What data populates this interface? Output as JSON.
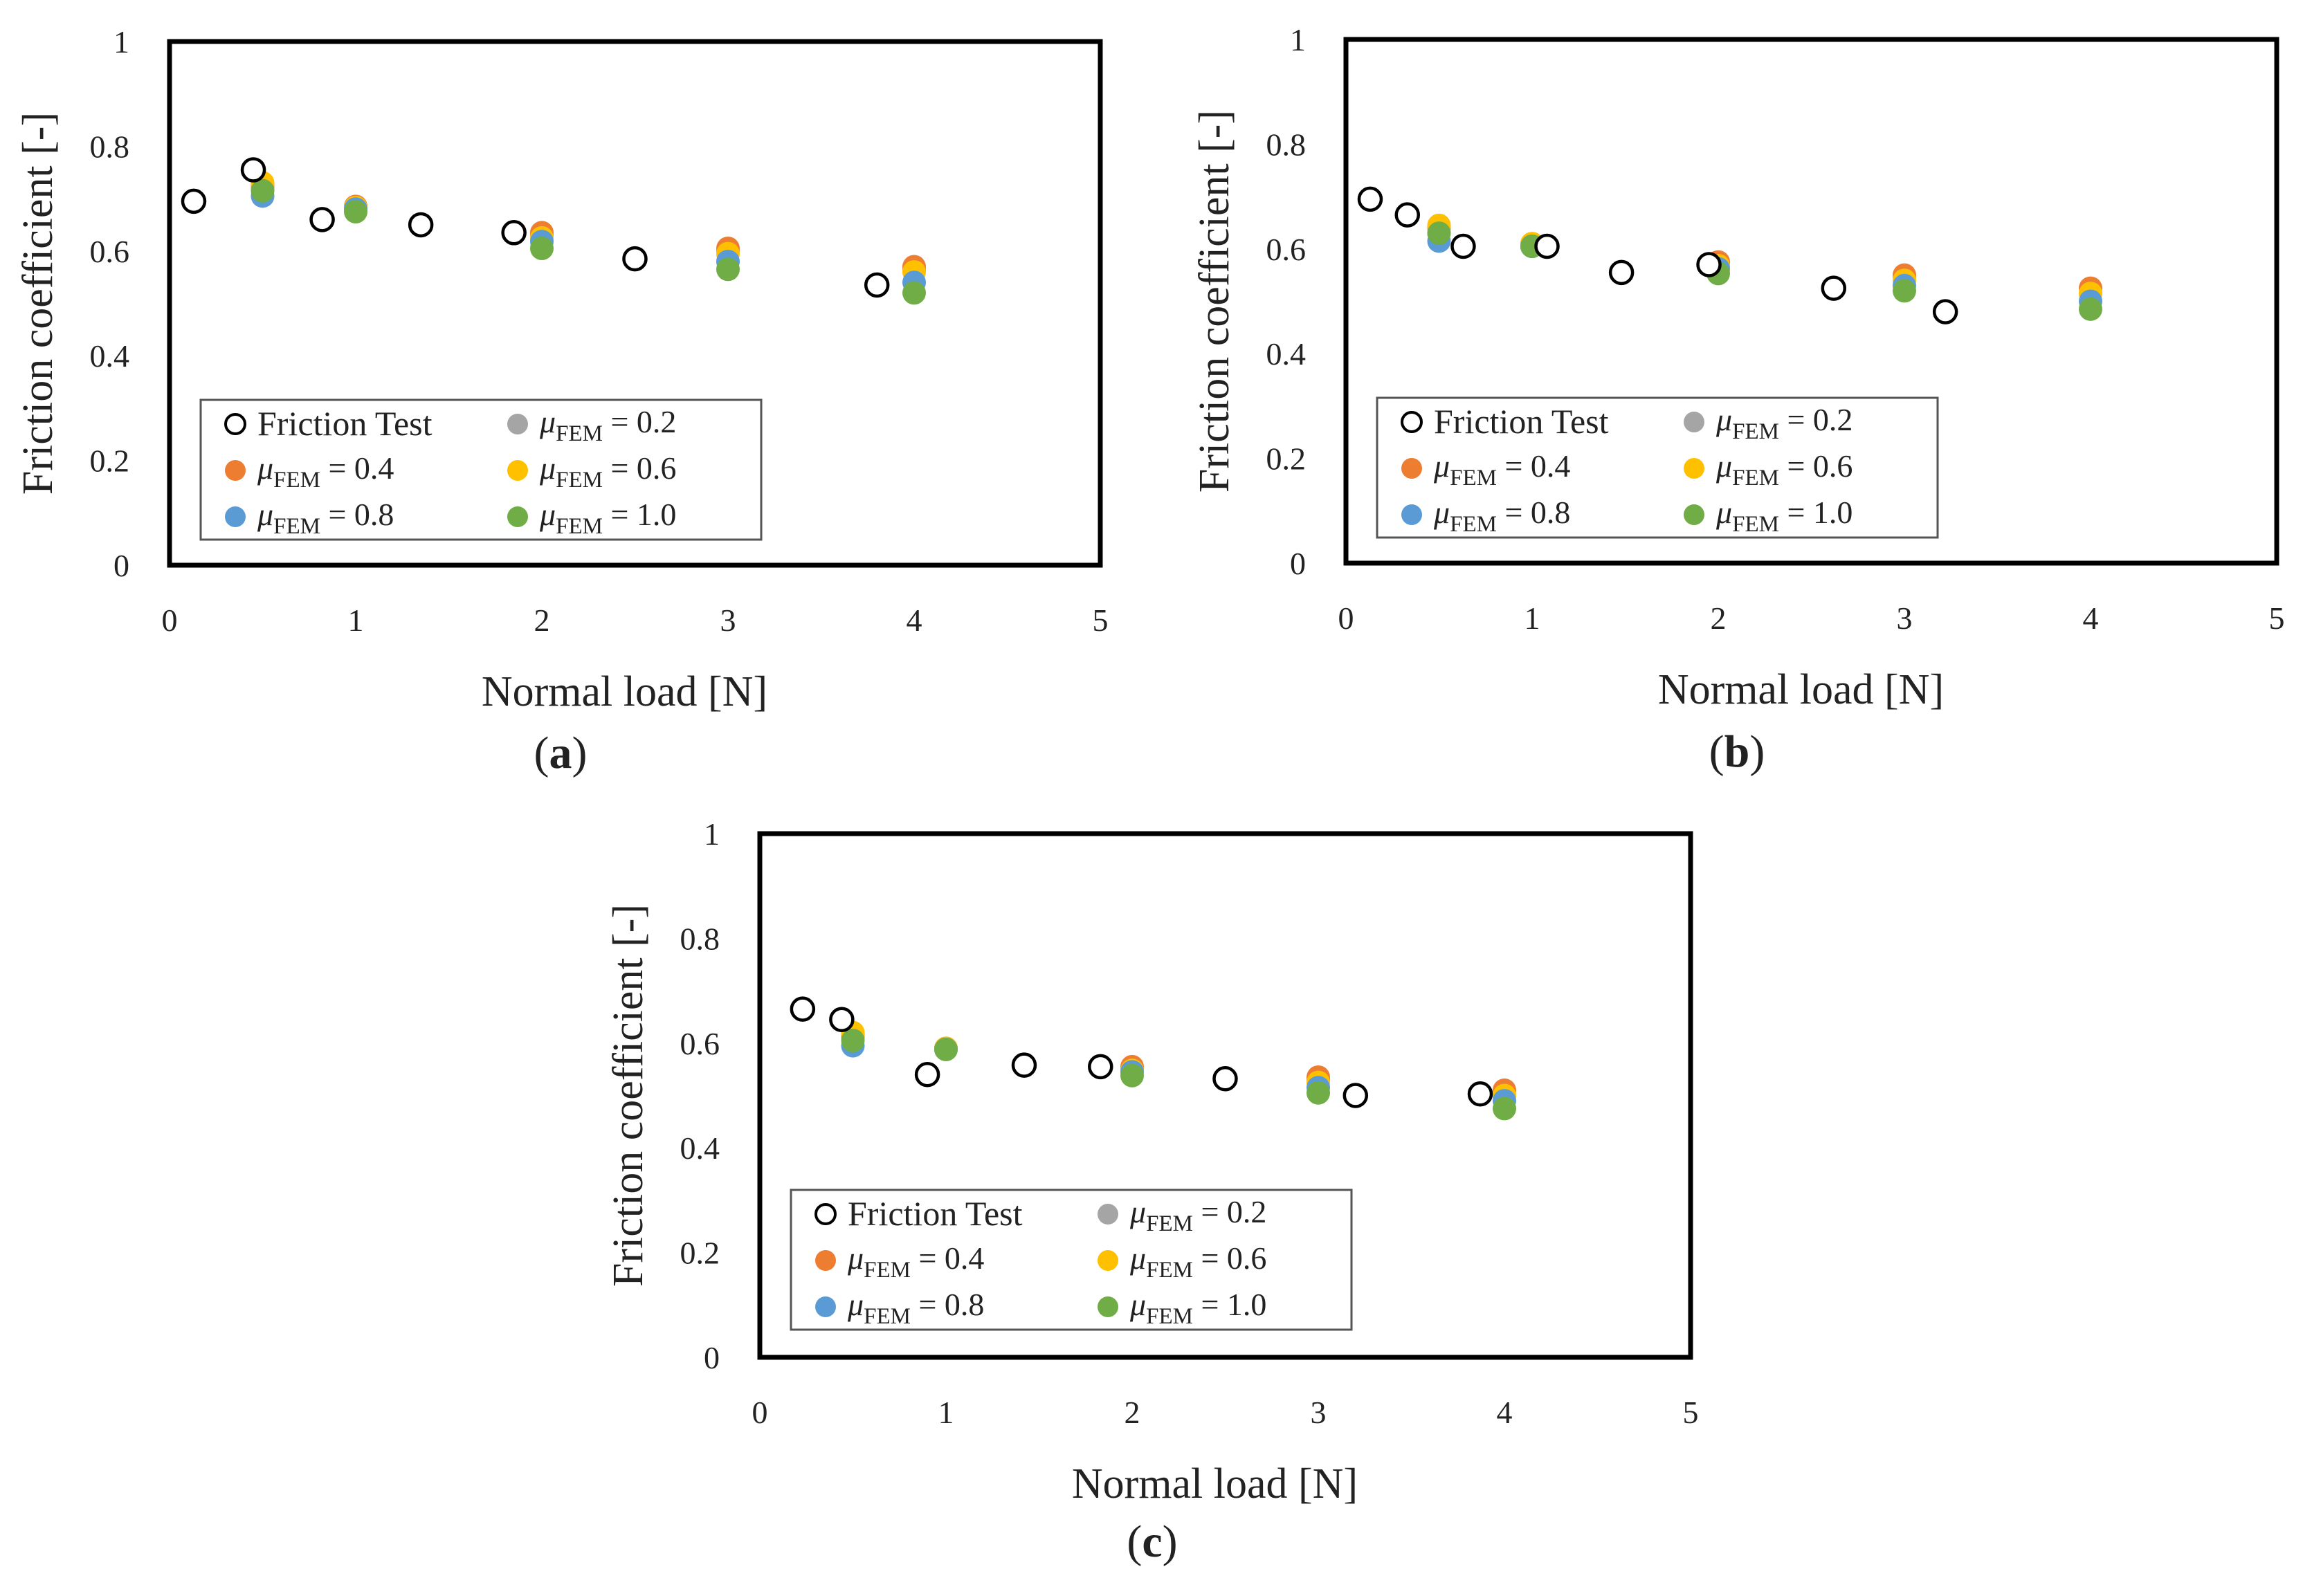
{
  "colors": {
    "test_marker": "#000000",
    "mu_0.2": "#a5a5a5",
    "mu_0.4": "#ed7d31",
    "mu_0.6": "#ffc000",
    "mu_0.8": "#5b9bd5",
    "mu_1.0": "#70ad47"
  },
  "chart_data": [
    {
      "type": "scatter",
      "label": "a",
      "xlabel": "Normal load [N]",
      "ylabel": "Friction coefficient [-]",
      "xlim": [
        0,
        5
      ],
      "ylim": [
        0,
        1
      ],
      "xticks": [
        "0",
        "1",
        "2",
        "3",
        "4",
        "5"
      ],
      "yticks": [
        "0",
        "0.2",
        "0.4",
        "0.6",
        "0.8",
        "1"
      ],
      "legend_position": "bottom-left",
      "series": [
        {
          "name": "Friction Test",
          "key": "test",
          "x": [
            0.13,
            0.45,
            0.82,
            1.35,
            1.85,
            2.5,
            3.8
          ],
          "y": [
            0.695,
            0.755,
            0.66,
            0.65,
            0.635,
            0.585,
            0.535
          ]
        },
        {
          "name": "μFEM = 0.2",
          "key": "mu_0.2",
          "x": [
            0.5,
            1.0,
            2.0,
            3.0,
            4.0
          ],
          "y": [
            0.72,
            0.685,
            0.63,
            0.6,
            0.565
          ]
        },
        {
          "name": "μFEM = 0.4",
          "key": "mu_0.4",
          "x": [
            0.5,
            1.0,
            2.0,
            3.0,
            4.0
          ],
          "y": [
            0.725,
            0.685,
            0.635,
            0.605,
            0.57
          ]
        },
        {
          "name": "μFEM = 0.6",
          "key": "mu_0.6",
          "x": [
            0.5,
            1.0,
            2.0,
            3.0,
            4.0
          ],
          "y": [
            0.73,
            0.683,
            0.625,
            0.595,
            0.56
          ]
        },
        {
          "name": "μFEM = 0.8",
          "key": "mu_0.8",
          "x": [
            0.5,
            1.0,
            2.0,
            3.0,
            4.0
          ],
          "y": [
            0.705,
            0.68,
            0.618,
            0.58,
            0.54
          ]
        },
        {
          "name": "μFEM = 1.0",
          "key": "mu_1.0",
          "x": [
            0.5,
            1.0,
            2.0,
            3.0,
            4.0
          ],
          "y": [
            0.715,
            0.675,
            0.605,
            0.565,
            0.52
          ]
        }
      ]
    },
    {
      "type": "scatter",
      "label": "b",
      "xlabel": "Normal load [N]",
      "ylabel": "Friction coefficient [-]",
      "xlim": [
        0,
        5
      ],
      "ylim": [
        0,
        1
      ],
      "xticks": [
        "0",
        "1",
        "2",
        "3",
        "4",
        "5"
      ],
      "yticks": [
        "0",
        "0.2",
        "0.4",
        "0.6",
        "0.8",
        "1"
      ],
      "legend_position": "bottom-left",
      "series": [
        {
          "name": "Friction Test",
          "key": "test",
          "x": [
            0.13,
            0.33,
            0.63,
            1.08,
            1.48,
            1.95,
            2.62,
            3.22
          ],
          "y": [
            0.695,
            0.665,
            0.605,
            0.605,
            0.555,
            0.57,
            0.525,
            0.48
          ]
        },
        {
          "name": "μFEM = 0.2",
          "key": "mu_0.2",
          "x": [
            0.5,
            1.0,
            2.0,
            3.0,
            4.0
          ],
          "y": [
            0.63,
            0.605,
            0.57,
            0.545,
            0.515
          ]
        },
        {
          "name": "μFEM = 0.4",
          "key": "mu_0.4",
          "x": [
            0.5,
            1.0,
            2.0,
            3.0,
            4.0
          ],
          "y": [
            0.64,
            0.61,
            0.575,
            0.55,
            0.525
          ]
        },
        {
          "name": "μFEM = 0.6",
          "key": "mu_0.6",
          "x": [
            0.5,
            1.0,
            2.0,
            3.0,
            4.0
          ],
          "y": [
            0.645,
            0.61,
            0.568,
            0.54,
            0.515
          ]
        },
        {
          "name": "μFEM = 0.8",
          "key": "mu_0.8",
          "x": [
            0.5,
            1.0,
            2.0,
            3.0,
            4.0
          ],
          "y": [
            0.615,
            0.605,
            0.562,
            0.53,
            0.5
          ]
        },
        {
          "name": "μFEM = 1.0",
          "key": "mu_1.0",
          "x": [
            0.5,
            1.0,
            2.0,
            3.0,
            4.0
          ],
          "y": [
            0.63,
            0.605,
            0.553,
            0.52,
            0.485
          ]
        }
      ]
    },
    {
      "type": "scatter",
      "label": "c",
      "xlabel": "Normal load [N]",
      "ylabel": "Friction coefficient [-]",
      "xlim": [
        0,
        5
      ],
      "ylim": [
        0,
        1
      ],
      "xticks": [
        "0",
        "1",
        "2",
        "3",
        "4",
        "5"
      ],
      "yticks": [
        "0",
        "0.2",
        "0.4",
        "0.6",
        "0.8",
        "1"
      ],
      "legend_position": "bottom-left",
      "series": [
        {
          "name": "Friction Test",
          "key": "test",
          "x": [
            0.23,
            0.44,
            0.9,
            1.42,
            1.83,
            2.5,
            3.2,
            3.87
          ],
          "y": [
            0.665,
            0.645,
            0.54,
            0.558,
            0.555,
            0.532,
            0.5,
            0.503
          ]
        },
        {
          "name": "μFEM = 0.2",
          "key": "mu_0.2",
          "x": [
            0.5,
            1.0,
            2.0,
            3.0,
            4.0
          ],
          "y": [
            0.61,
            0.59,
            0.55,
            0.53,
            0.5
          ]
        },
        {
          "name": "μFEM = 0.4",
          "key": "mu_0.4",
          "x": [
            0.5,
            1.0,
            2.0,
            3.0,
            4.0
          ],
          "y": [
            0.615,
            0.59,
            0.555,
            0.535,
            0.51
          ]
        },
        {
          "name": "μFEM = 0.6",
          "key": "mu_0.6",
          "x": [
            0.5,
            1.0,
            2.0,
            3.0,
            4.0
          ],
          "y": [
            0.62,
            0.59,
            0.548,
            0.525,
            0.5
          ]
        },
        {
          "name": "μFEM = 0.8",
          "key": "mu_0.8",
          "x": [
            0.5,
            1.0,
            2.0,
            3.0,
            4.0
          ],
          "y": [
            0.595,
            0.588,
            0.545,
            0.515,
            0.49
          ]
        },
        {
          "name": "μFEM = 1.0",
          "key": "mu_1.0",
          "x": [
            0.5,
            1.0,
            2.0,
            3.0,
            4.0
          ],
          "y": [
            0.605,
            0.588,
            0.538,
            0.505,
            0.475
          ]
        }
      ]
    }
  ]
}
